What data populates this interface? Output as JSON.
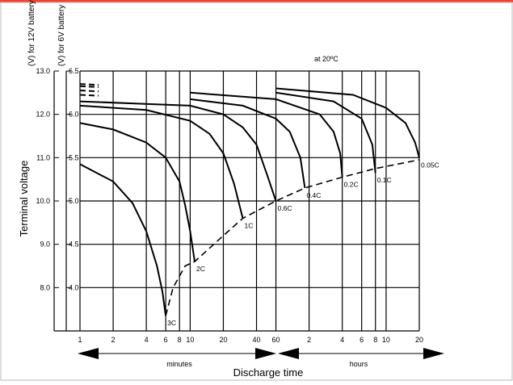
{
  "chart_data": {
    "type": "line",
    "title": "",
    "annotation": "at 20ºC",
    "xlabel": "Discharge time",
    "ylabel": "Terminal voltage",
    "y_unit_left": "(V) for 12V battery",
    "y_unit_right": "(V) for 6V battery",
    "x_scale": "log",
    "x_units_note": "time in minutes; upper range labeled in hours",
    "y_ticks_12v": [
      "13.0",
      "12.0",
      "11.0",
      "10.0",
      "9.0",
      "8.0"
    ],
    "y_ticks_6v": [
      "6.5",
      "6.0",
      "5.5",
      "5.0",
      "4.5",
      "4.0"
    ],
    "y_tick_values": [
      13.0,
      12.0,
      11.0,
      10.0,
      9.0,
      8.0
    ],
    "ylim": [
      7.0,
      13.0
    ],
    "x_ticks_minutes": [
      {
        "label": "1",
        "value": 1
      },
      {
        "label": "2",
        "value": 2
      },
      {
        "label": "4",
        "value": 4
      },
      {
        "label": "6",
        "value": 6
      },
      {
        "label": "8",
        "value": 8
      },
      {
        "label": "10",
        "value": 10
      },
      {
        "label": "20",
        "value": 20
      },
      {
        "label": "40",
        "value": 40
      },
      {
        "label": "60",
        "value": 60
      }
    ],
    "x_ticks_hours": [
      {
        "label": "2",
        "value": 120
      },
      {
        "label": "4",
        "value": 240
      },
      {
        "label": "6",
        "value": 360
      },
      {
        "label": "8",
        "value": 480
      },
      {
        "label": "10",
        "value": 600
      },
      {
        "label": "20",
        "value": 1200
      }
    ],
    "range_labels": {
      "minutes": "minutes",
      "hours": "hours"
    },
    "xlim": [
      1,
      1200
    ],
    "series": [
      {
        "name": "3C",
        "points": [
          [
            1,
            10.85
          ],
          [
            2,
            10.45
          ],
          [
            3,
            9.95
          ],
          [
            4,
            9.3
          ],
          [
            5,
            8.5
          ],
          [
            5.6,
            7.9
          ],
          [
            6,
            7.35
          ]
        ]
      },
      {
        "name": "2C",
        "points": [
          [
            1,
            11.8
          ],
          [
            2,
            11.65
          ],
          [
            4,
            11.35
          ],
          [
            6,
            11.0
          ],
          [
            8,
            10.45
          ],
          [
            9,
            9.9
          ],
          [
            10,
            9.3
          ],
          [
            11,
            8.6
          ]
        ]
      },
      {
        "name": "1C",
        "points": [
          [
            1,
            12.2
          ],
          [
            4,
            12.1
          ],
          [
            10,
            11.85
          ],
          [
            15,
            11.55
          ],
          [
            20,
            11.1
          ],
          [
            25,
            10.4
          ],
          [
            30,
            9.6
          ]
        ]
      },
      {
        "name": "0.6C",
        "points": [
          [
            1,
            12.3
          ],
          [
            10,
            12.2
          ],
          [
            20,
            12.0
          ],
          [
            30,
            11.7
          ],
          [
            40,
            11.3
          ],
          [
            50,
            10.6
          ],
          [
            60,
            10.0
          ]
        ]
      },
      {
        "name": "0.4C",
        "points": [
          [
            1,
            12.45
          ],
          [
            10,
            12.35
          ],
          [
            30,
            12.2
          ],
          [
            60,
            11.9
          ],
          [
            80,
            11.6
          ],
          [
            100,
            11.0
          ],
          [
            110,
            10.3
          ]
        ]
      },
      {
        "name": "0.2C",
        "points": [
          [
            1,
            12.55
          ],
          [
            10,
            12.5
          ],
          [
            60,
            12.35
          ],
          [
            150,
            12.0
          ],
          [
            200,
            11.6
          ],
          [
            230,
            11.1
          ],
          [
            240,
            10.55
          ]
        ]
      },
      {
        "name": "0.1C",
        "points": [
          [
            1,
            12.65
          ],
          [
            60,
            12.5
          ],
          [
            200,
            12.3
          ],
          [
            360,
            11.9
          ],
          [
            450,
            11.3
          ],
          [
            480,
            10.65
          ]
        ]
      },
      {
        "name": "0.05C",
        "points": [
          [
            1,
            12.7
          ],
          [
            60,
            12.6
          ],
          [
            300,
            12.45
          ],
          [
            600,
            12.15
          ],
          [
            900,
            11.8
          ],
          [
            1100,
            11.35
          ],
          [
            1200,
            11.0
          ]
        ]
      }
    ],
    "cutoff_line": {
      "style": "dashed",
      "points": [
        [
          6,
          7.35
        ],
        [
          7,
          8.0
        ],
        [
          9,
          8.5
        ],
        [
          11,
          8.6
        ],
        [
          20,
          9.2
        ],
        [
          30,
          9.6
        ],
        [
          60,
          10.0
        ],
        [
          110,
          10.3
        ],
        [
          240,
          10.55
        ],
        [
          480,
          10.75
        ],
        [
          1200,
          10.95
        ]
      ]
    },
    "grid": true,
    "legend": "none"
  }
}
